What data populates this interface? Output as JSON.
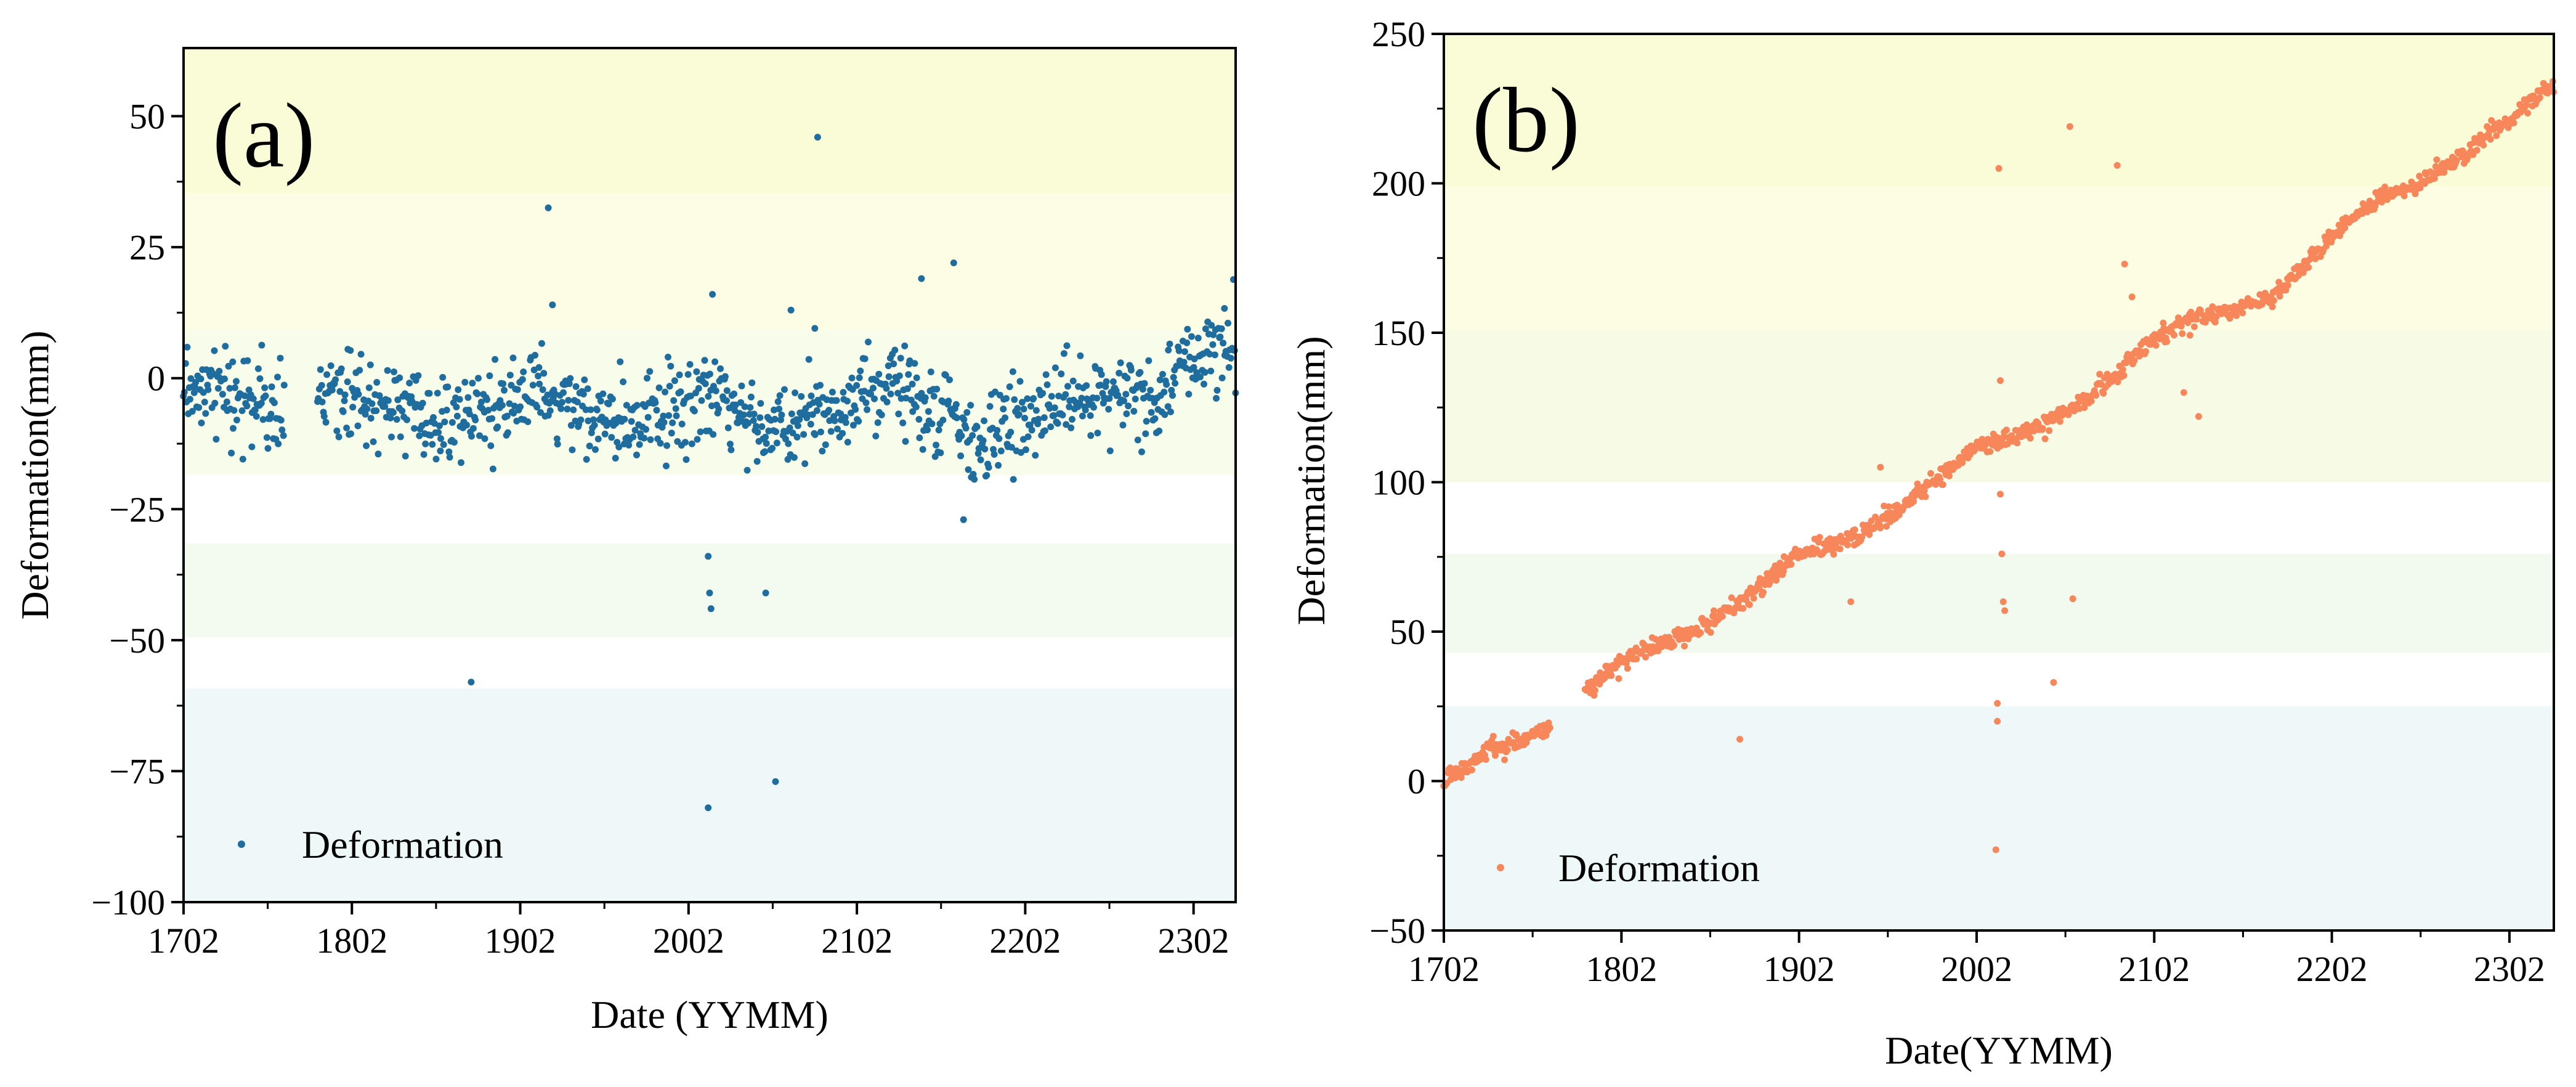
{
  "figure": {
    "description_free": true
  },
  "chart_data": [
    {
      "type": "scatter",
      "panel_label": "(a)",
      "title": "",
      "xlabel": "Date (YYMM)",
      "ylabel": "Deformation(mm)",
      "x_unit": "months since 1702",
      "x_ticks": [
        {
          "value": 0,
          "label": "1702"
        },
        {
          "value": 12,
          "label": "1802"
        },
        {
          "value": 24,
          "label": "1902"
        },
        {
          "value": 36,
          "label": "2002"
        },
        {
          "value": 48,
          "label": "2102"
        },
        {
          "value": 60,
          "label": "2202"
        },
        {
          "value": 72,
          "label": "2302"
        }
      ],
      "xlim": [
        0,
        75
      ],
      "y_ticks": [
        {
          "value": 50,
          "label": "50"
        },
        {
          "value": 25,
          "label": "25"
        },
        {
          "value": 0,
          "label": "0"
        },
        {
          "value": -25,
          "label": "−25"
        },
        {
          "value": -50,
          "label": "−50"
        },
        {
          "value": -75,
          "label": "−75"
        },
        {
          "value": -100,
          "label": "−100"
        }
      ],
      "ylim": [
        -100,
        63
      ],
      "series": [
        {
          "name": "Deformation",
          "color": "#1f6d9e",
          "trend": [
            [
              0,
              -1
            ],
            [
              5,
              -5
            ],
            [
              7,
              -7
            ],
            [
              9,
              -2
            ],
            [
              13,
              -3
            ],
            [
              17,
              -8
            ],
            [
              20,
              -7
            ],
            [
              25,
              -3
            ],
            [
              31,
              -9
            ],
            [
              36,
              -5
            ],
            [
              38,
              -4
            ],
            [
              41,
              -9
            ],
            [
              43,
              -10
            ],
            [
              48,
              -3
            ],
            [
              52,
              -3
            ],
            [
              55,
              -8
            ],
            [
              57,
              -12
            ],
            [
              60,
              -6
            ],
            [
              66,
              -3
            ],
            [
              69,
              -4
            ],
            [
              72,
              4
            ],
            [
              75,
              7
            ]
          ],
          "gap": [
            7.2,
            9.5
          ],
          "outliers": [
            [
              20.5,
              -58
            ],
            [
              26,
              32.5
            ],
            [
              26.3,
              14
            ],
            [
              37.4,
              -82
            ],
            [
              37.4,
              -34
            ],
            [
              37.5,
              -41
            ],
            [
              37.6,
              -44
            ],
            [
              37.7,
              16
            ],
            [
              41.5,
              -41
            ],
            [
              42.2,
              -77
            ],
            [
              43.3,
              13
            ],
            [
              45,
              9.5
            ],
            [
              45.2,
              46
            ],
            [
              52.6,
              19
            ],
            [
              54.9,
              22
            ],
            [
              55.6,
              -27
            ]
          ],
          "noise_sd": 4,
          "points": 1100
        }
      ],
      "legend": {
        "entries": [
          "Deformation"
        ],
        "position": "bottom-left"
      },
      "background_bands": [
        "#fafbd7",
        "#fdfde5",
        "#f8fcea",
        "#ffffff",
        "#f3faef",
        "#ffffff",
        "#eef8f8"
      ]
    },
    {
      "type": "scatter",
      "panel_label": "(b)",
      "title": "",
      "xlabel": "Date(YYMM)",
      "ylabel": "Deformation(mm)",
      "x_unit": "months since 1702",
      "x_ticks": [
        {
          "value": 0,
          "label": "1702"
        },
        {
          "value": 12,
          "label": "1802"
        },
        {
          "value": 24,
          "label": "1902"
        },
        {
          "value": 36,
          "label": "2002"
        },
        {
          "value": 48,
          "label": "2102"
        },
        {
          "value": 60,
          "label": "2202"
        },
        {
          "value": 72,
          "label": "2302"
        }
      ],
      "xlim": [
        0,
        75
      ],
      "y_ticks": [
        {
          "value": 250,
          "label": "250"
        },
        {
          "value": 200,
          "label": "200"
        },
        {
          "value": 150,
          "label": "150"
        },
        {
          "value": 100,
          "label": "100"
        },
        {
          "value": 50,
          "label": "50"
        },
        {
          "value": 0,
          "label": "0"
        },
        {
          "value": -50,
          "label": "−50"
        }
      ],
      "ylim": [
        -50,
        250
      ],
      "series": [
        {
          "name": "Deformation",
          "color": "#f7875a",
          "trend": [
            [
              0,
              0
            ],
            [
              3,
              10
            ],
            [
              7.2,
              18
            ],
            [
              9.5,
              30
            ],
            [
              12,
              40
            ],
            [
              13.5,
              44
            ],
            [
              17,
              50
            ],
            [
              20,
              60
            ],
            [
              24,
              76
            ],
            [
              28,
              82
            ],
            [
              31,
              92
            ],
            [
              36,
              112
            ],
            [
              38,
              114
            ],
            [
              41,
              120
            ],
            [
              44,
              130
            ],
            [
              48,
              148
            ],
            [
              51,
              155
            ],
            [
              56,
              162
            ],
            [
              60,
              182
            ],
            [
              63,
              195
            ],
            [
              66,
              200
            ],
            [
              69,
              210
            ],
            [
              75,
              233
            ]
          ],
          "gap": [
            7.2,
            9.5
          ],
          "outliers": [
            [
              20,
              14
            ],
            [
              27.5,
              60
            ],
            [
              29.5,
              105
            ],
            [
              37.3,
              -23
            ],
            [
              37.4,
              20
            ],
            [
              37.4,
              26
            ],
            [
              37.5,
              205
            ],
            [
              37.6,
              134
            ],
            [
              37.6,
              96
            ],
            [
              37.7,
              76
            ],
            [
              37.8,
              60
            ],
            [
              37.9,
              57
            ],
            [
              41.2,
              33
            ],
            [
              42.3,
              219
            ],
            [
              42.5,
              61
            ],
            [
              45.5,
              206
            ],
            [
              46,
              173
            ],
            [
              46.5,
              162
            ],
            [
              50,
              130
            ],
            [
              51,
              122
            ]
          ],
          "noise_sd": 1.5,
          "points": 1100
        }
      ],
      "legend": {
        "entries": [
          "Deformation"
        ],
        "position": "bottom-left"
      },
      "background_bands": [
        "#fafbd7",
        "#fcfde3",
        "#f7fbe6",
        "#ffffff",
        "#f2f9ef",
        "#ffffff",
        "#eef8f8"
      ]
    }
  ]
}
